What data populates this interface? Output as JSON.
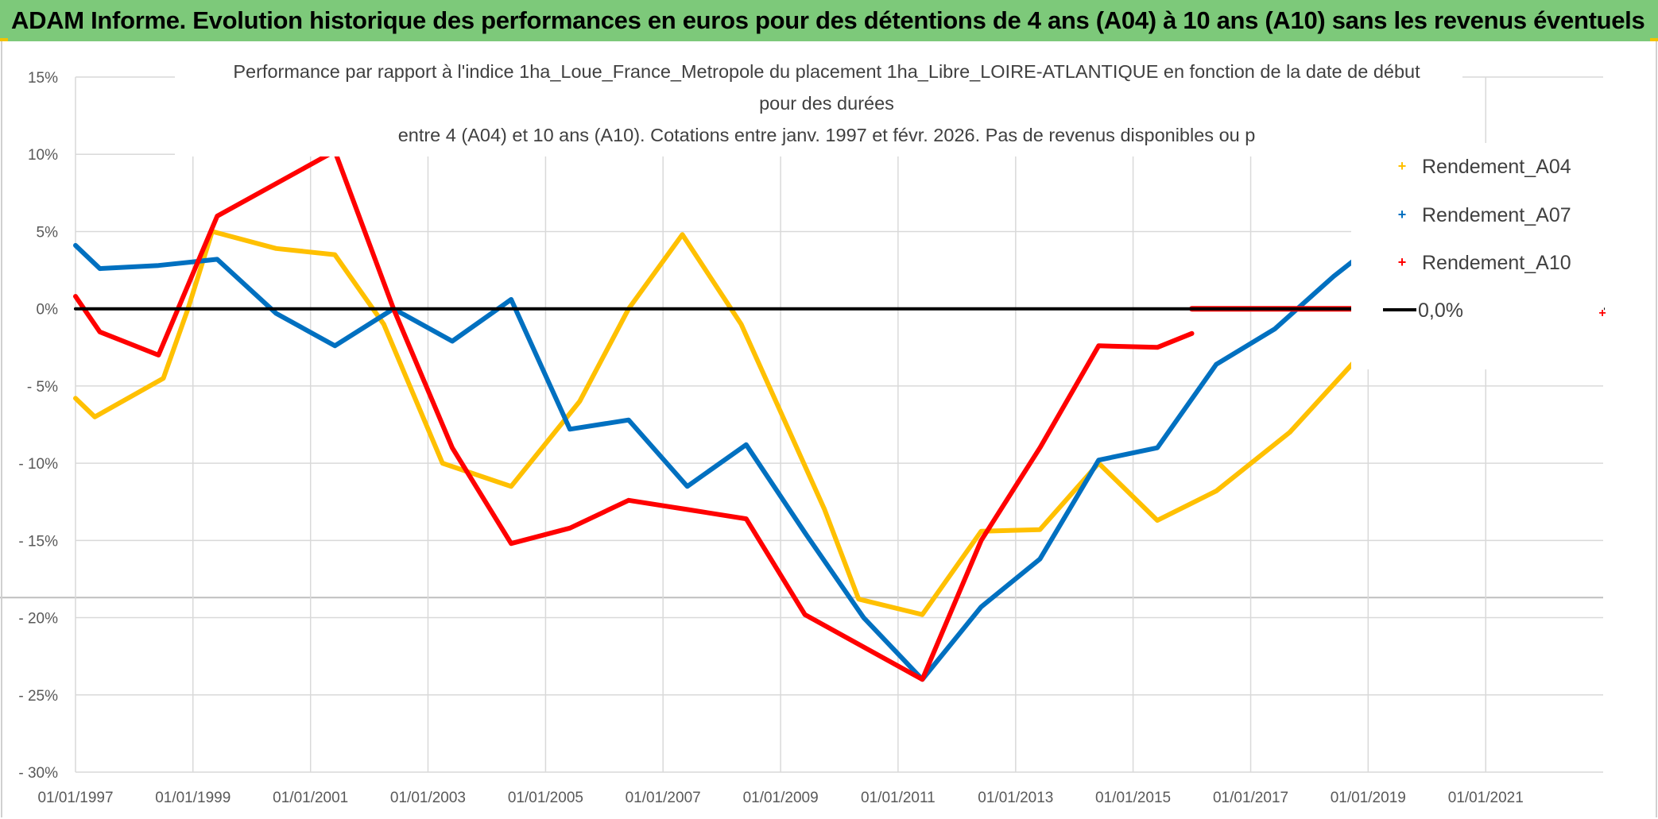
{
  "banner": {
    "text": "ADAM Informe. Evolution historique des performances en euros pour des détentions de 4 ans (A04) à 10 ans (A10) sans les revenus éventuels"
  },
  "colors": {
    "banner_bg": "#7dc97a",
    "A04": "#ffc000",
    "A07": "#0070c0",
    "A10": "#ff0000",
    "zero_line": "#000000",
    "grid": "#d9d9d9"
  },
  "chart_data": {
    "type": "line",
    "title_lines": [
      "Performance  par rapport à l'indice 1ha_Loue_France_Metropole  du placement 1ha_Libre_LOIRE-ATLANTIQUE en fonction de la date de début",
      "pour des durées",
      "entre 4 (A04) et 10 ans (A10). Cotations entre janv. 1997 et févr. 2026. Pas de revenus disponibles ou p"
    ],
    "x_range": [
      "1997-01-01",
      "2023-01-01"
    ],
    "x_ticks": [
      "1997-01-01",
      "1999-01-01",
      "2001-01-01",
      "2003-01-01",
      "2005-01-01",
      "2007-01-01",
      "2009-01-01",
      "2011-01-01",
      "2013-01-01",
      "2015-01-01",
      "2017-01-01",
      "2019-01-01",
      "2021-01-01"
    ],
    "x_tick_labels": [
      "01/01/1997",
      "01/01/1999",
      "01/01/2001",
      "01/01/2003",
      "01/01/2005",
      "01/01/2007",
      "01/01/2009",
      "01/01/2011",
      "01/01/2013",
      "01/01/2015",
      "01/01/2017",
      "01/01/2019",
      "01/01/2021"
    ],
    "y_range": [
      -30,
      15
    ],
    "y_ticks": [
      15,
      10,
      5,
      0,
      -5,
      -10,
      -15,
      -20,
      -25,
      -30
    ],
    "y_tick_labels": [
      "15%",
      "10%",
      "5%",
      "0%",
      "- 5%",
      "- 10%",
      "- 15%",
      "- 20%",
      "- 25%",
      "- 30%"
    ],
    "grid": true,
    "legend_position": "right",
    "series": [
      {
        "name": "Rendement_A04",
        "color_key": "A04",
        "points": [
          [
            "1997-01-01",
            -5.8
          ],
          [
            "1997-05-01",
            -7.0
          ],
          [
            "1998-07-01",
            -4.5
          ],
          [
            "1998-12-01",
            0.0
          ],
          [
            "1999-05-01",
            5.0
          ],
          [
            "2000-06-01",
            3.9
          ],
          [
            "2001-06-01",
            3.5
          ],
          [
            "2002-04-01",
            -1.0
          ],
          [
            "2003-04-01",
            -10.0
          ],
          [
            "2004-06-01",
            -11.5
          ],
          [
            "2005-08-01",
            -6.0
          ],
          [
            "2006-06-01",
            0.0
          ],
          [
            "2007-05-01",
            4.8
          ],
          [
            "2008-05-01",
            -1.0
          ],
          [
            "2009-10-01",
            -13.0
          ],
          [
            "2010-05-01",
            -18.8
          ],
          [
            "2011-06-01",
            -19.8
          ],
          [
            "2012-06-01",
            -14.4
          ],
          [
            "2013-06-01",
            -14.3
          ],
          [
            "2014-06-01",
            -10.0
          ],
          [
            "2015-06-01",
            -13.7
          ],
          [
            "2016-06-01",
            -11.8
          ],
          [
            "2017-09-01",
            -8.0
          ],
          [
            "2018-10-01",
            -3.5
          ],
          [
            "2019-02-01",
            -1.5
          ]
        ]
      },
      {
        "name": "Rendement_A07",
        "color_key": "A07",
        "points": [
          [
            "1997-01-01",
            4.1
          ],
          [
            "1997-06-01",
            2.6
          ],
          [
            "1998-06-01",
            2.8
          ],
          [
            "1999-06-01",
            3.2
          ],
          [
            "2000-06-01",
            -0.3
          ],
          [
            "2001-06-01",
            -2.4
          ],
          [
            "2002-06-01",
            0.0
          ],
          [
            "2003-06-01",
            -2.1
          ],
          [
            "2004-06-01",
            0.6
          ],
          [
            "2005-06-01",
            -7.8
          ],
          [
            "2006-06-01",
            -7.2
          ],
          [
            "2007-06-01",
            -11.5
          ],
          [
            "2008-06-01",
            -8.8
          ],
          [
            "2009-06-01",
            -14.5
          ],
          [
            "2010-06-01",
            -20.0
          ],
          [
            "2011-06-01",
            -24.0
          ],
          [
            "2012-06-01",
            -19.3
          ],
          [
            "2013-06-01",
            -16.2
          ],
          [
            "2014-06-01",
            -9.8
          ],
          [
            "2015-06-01",
            -9.0
          ],
          [
            "2016-06-01",
            -3.6
          ],
          [
            "2017-06-01",
            -1.3
          ],
          [
            "2018-06-01",
            2.1
          ],
          [
            "2018-12-01",
            3.6
          ]
        ]
      },
      {
        "name": "Rendement_A10",
        "color_key": "A10",
        "points": [
          [
            "1997-01-01",
            0.8
          ],
          [
            "1997-06-01",
            -1.5
          ],
          [
            "1998-06-01",
            -3.0
          ],
          [
            "1999-06-01",
            6.0
          ],
          [
            "2001-06-01",
            10.2
          ],
          [
            "2002-06-01",
            0.0
          ],
          [
            "2003-06-01",
            -9.0
          ],
          [
            "2004-06-01",
            -15.2
          ],
          [
            "2005-06-01",
            -14.2
          ],
          [
            "2006-06-01",
            -12.4
          ],
          [
            "2007-06-01",
            -13.0
          ],
          [
            "2008-06-01",
            -13.6
          ],
          [
            "2009-06-01",
            -19.8
          ],
          [
            "2011-06-01",
            -24.0
          ],
          [
            "2012-06-01",
            -15.0
          ],
          [
            "2013-06-01",
            -9.0
          ],
          [
            "2014-06-01",
            -2.4
          ],
          [
            "2015-06-01",
            -2.5
          ],
          [
            "2016-01-01",
            -1.6
          ]
        ],
        "flat_points": [
          [
            "2016-01-01",
            0.0
          ],
          [
            "2019-01-01",
            0.0
          ]
        ]
      },
      {
        "name": "0,0%",
        "color_key": "zero_line",
        "points": [
          [
            "1997-01-01",
            0.0
          ],
          [
            "2023-01-01",
            0.0
          ]
        ]
      }
    ]
  }
}
